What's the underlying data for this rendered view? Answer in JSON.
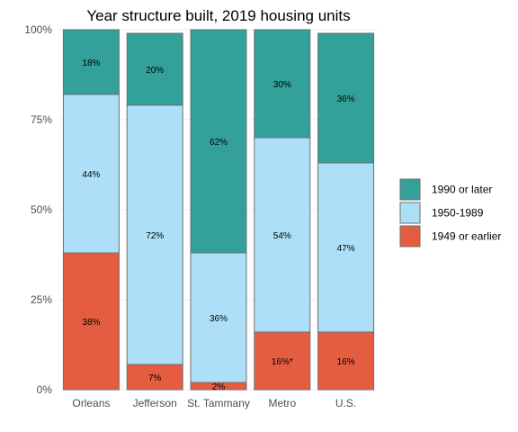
{
  "chart_data": {
    "type": "bar",
    "stacked": true,
    "title": "Year structure built, 2019 housing units",
    "categories": [
      "Orleans",
      "Jefferson",
      "St. Tammany",
      "Metro",
      "U.S."
    ],
    "series": [
      {
        "name": "1949 or earlier",
        "color": "#e55d41",
        "values": [
          38,
          7,
          2,
          16,
          16
        ],
        "labels": [
          "38%",
          "7%",
          "2%",
          "16%*",
          "16%"
        ]
      },
      {
        "name": "1950-1989",
        "color": "#ade0f8",
        "values": [
          44,
          72,
          36,
          54,
          47
        ],
        "labels": [
          "44%",
          "72%",
          "36%",
          "54%",
          "47%"
        ]
      },
      {
        "name": "1990 or later",
        "color": "#33a19a",
        "values": [
          18,
          20,
          62,
          30,
          36
        ],
        "labels": [
          "18%",
          "20%",
          "62%",
          "30%",
          "36%"
        ]
      }
    ],
    "legend_order": [
      "1990 or later",
      "1950-1989",
      "1949 or earlier"
    ],
    "yticks": [
      "0%",
      "25%",
      "50%",
      "75%",
      "100%"
    ],
    "ylim": [
      0,
      100
    ],
    "legend_position": "right",
    "grid": true
  }
}
